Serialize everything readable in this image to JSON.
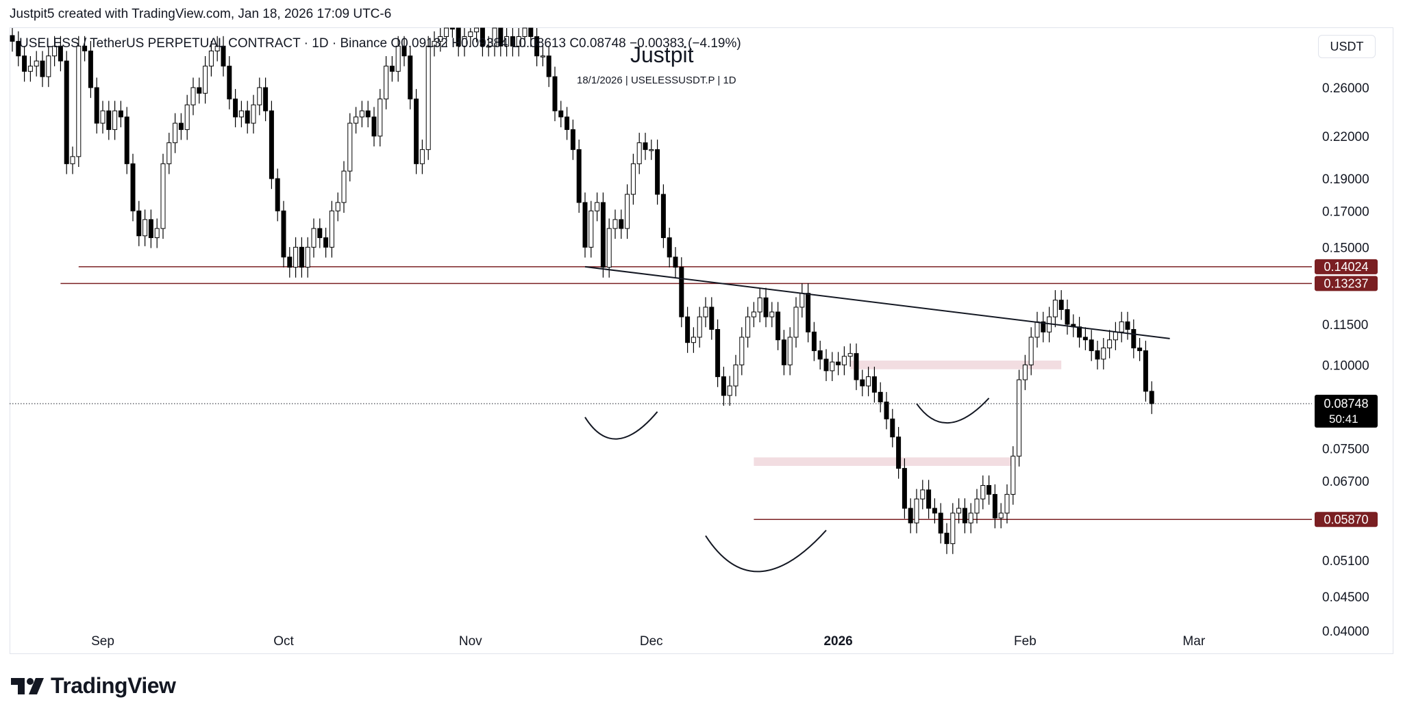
{
  "header": {
    "credit": "Justpit5 created with TradingView.com, Jan 18, 2026 17:09 UTC-6"
  },
  "legend": {
    "symbol_line": "USELESS / TetherUS PERPETUAL CONTRACT · 1D · Binance  O0.09132  H0.09384  L0.08613  C0.08748  −0.00383 (−4.19%)"
  },
  "watermark": {
    "title": "Justpit",
    "subtitle": "18/1/2026 | USELESSUSDT.P | 1D"
  },
  "price_scale": {
    "currency": "USDT",
    "ticks": [
      "0.26000",
      "0.22000",
      "0.19000",
      "0.17000",
      "0.15000",
      "0.11500",
      "0.10000",
      "0.07500",
      "0.06700",
      "0.05100",
      "0.04500",
      "0.04000"
    ]
  },
  "footer": {
    "brand": "TradingView"
  },
  "chart_data": {
    "type": "candlestick",
    "symbol": "USELESSUSDT.P",
    "interval": "1D",
    "y_scale": "log",
    "ylim": [
      0.037,
      0.32
    ],
    "x_range": [
      "2025-08-17",
      "2026-03-13"
    ],
    "x_ticks": [
      {
        "label": "Sep",
        "date": "2025-09-01"
      },
      {
        "label": "Oct",
        "date": "2025-10-01"
      },
      {
        "label": "Nov",
        "date": "2025-11-01"
      },
      {
        "label": "Dec",
        "date": "2025-12-01"
      },
      {
        "label": "2026",
        "date": "2026-01-01",
        "bold": true
      },
      {
        "label": "Feb",
        "date": "2026-02-01"
      },
      {
        "label": "Mar",
        "date": "2026-03-01"
      }
    ],
    "closes": [
      0.305,
      0.29,
      0.275,
      0.28,
      0.285,
      0.27,
      0.29,
      0.3,
      0.285,
      0.2,
      0.205,
      0.3,
      0.295,
      0.26,
      0.23,
      0.24,
      0.225,
      0.24,
      0.235,
      0.2,
      0.17,
      0.156,
      0.165,
      0.155,
      0.16,
      0.2,
      0.215,
      0.23,
      0.225,
      0.245,
      0.26,
      0.255,
      0.28,
      0.295,
      0.3,
      0.28,
      0.25,
      0.235,
      0.24,
      0.23,
      0.245,
      0.26,
      0.24,
      0.19,
      0.17,
      0.145,
      0.14,
      0.15,
      0.14,
      0.15,
      0.16,
      0.155,
      0.15,
      0.17,
      0.175,
      0.195,
      0.23,
      0.235,
      0.24,
      0.235,
      0.22,
      0.25,
      0.28,
      0.275,
      0.3,
      0.29,
      0.25,
      0.2,
      0.21,
      0.3,
      0.305,
      0.31,
      0.33,
      0.32,
      0.3,
      0.31,
      0.315,
      0.32,
      0.3,
      0.3,
      0.32,
      0.3,
      0.31,
      0.3,
      0.31,
      0.32,
      0.31,
      0.29,
      0.29,
      0.27,
      0.24,
      0.235,
      0.225,
      0.21,
      0.175,
      0.15,
      0.17,
      0.175,
      0.14,
      0.16,
      0.165,
      0.16,
      0.18,
      0.2,
      0.215,
      0.21,
      0.21,
      0.18,
      0.155,
      0.145,
      0.14,
      0.118,
      0.108,
      0.11,
      0.118,
      0.122,
      0.113,
      0.096,
      0.09,
      0.093,
      0.1,
      0.11,
      0.118,
      0.12,
      0.126,
      0.118,
      0.12,
      0.109,
      0.1,
      0.11,
      0.122,
      0.128,
      0.112,
      0.105,
      0.102,
      0.098,
      0.101,
      0.1,
      0.103,
      0.104,
      0.095,
      0.093,
      0.096,
      0.091,
      0.088,
      0.083,
      0.078,
      0.07,
      0.061,
      0.058,
      0.063,
      0.065,
      0.061,
      0.06,
      0.056,
      0.054,
      0.06,
      0.061,
      0.058,
      0.06,
      0.063,
      0.066,
      0.064,
      0.059,
      0.06,
      0.064,
      0.073,
      0.095,
      0.1,
      0.11,
      0.116,
      0.112,
      0.118,
      0.125,
      0.121,
      0.115,
      0.114,
      0.11,
      0.109,
      0.105,
      0.102,
      0.106,
      0.109,
      0.112,
      0.116,
      0.113,
      0.106,
      0.105,
      0.0913,
      0.08748
    ],
    "last_price": 0.08748,
    "countdown": "50:41",
    "horizontal_lines": [
      {
        "price": 0.14024,
        "label": "0.14024",
        "color": "#7a1f22",
        "from": "2025-08-28"
      },
      {
        "price": 0.13237,
        "label": "0.13237",
        "color": "#7a1f22",
        "from": "2025-08-25"
      },
      {
        "price": 0.0587,
        "label": "0.05870",
        "color": "#7a1f22",
        "from": "2025-12-18"
      }
    ],
    "trendline": [
      {
        "date": "2025-11-20",
        "price": 0.14024
      },
      {
        "date": "2026-02-25",
        "price": 0.1095
      }
    ],
    "zones": [
      {
        "from": "2025-12-18",
        "to": "2026-01-30",
        "low": 0.0706,
        "high": 0.0727,
        "color": "#f2dde1"
      },
      {
        "from": "2026-01-03",
        "to": "2026-02-07",
        "low": 0.0985,
        "high": 0.1015,
        "color": "#f2dde1"
      }
    ],
    "annotations": [
      {
        "type": "arc",
        "name": "left-shoulder-arc",
        "center_date": "2025-11-26",
        "width_days": 12,
        "top": 0.0835,
        "bottom": 0.0768
      },
      {
        "type": "arc",
        "name": "head-arc",
        "center_date": "2025-12-20",
        "width_days": 20,
        "top": 0.0555,
        "bottom": 0.0485
      },
      {
        "type": "arc",
        "name": "right-shoulder-arc",
        "center_date": "2026-01-20",
        "width_days": 12,
        "top": 0.0875,
        "bottom": 0.0812
      }
    ]
  }
}
